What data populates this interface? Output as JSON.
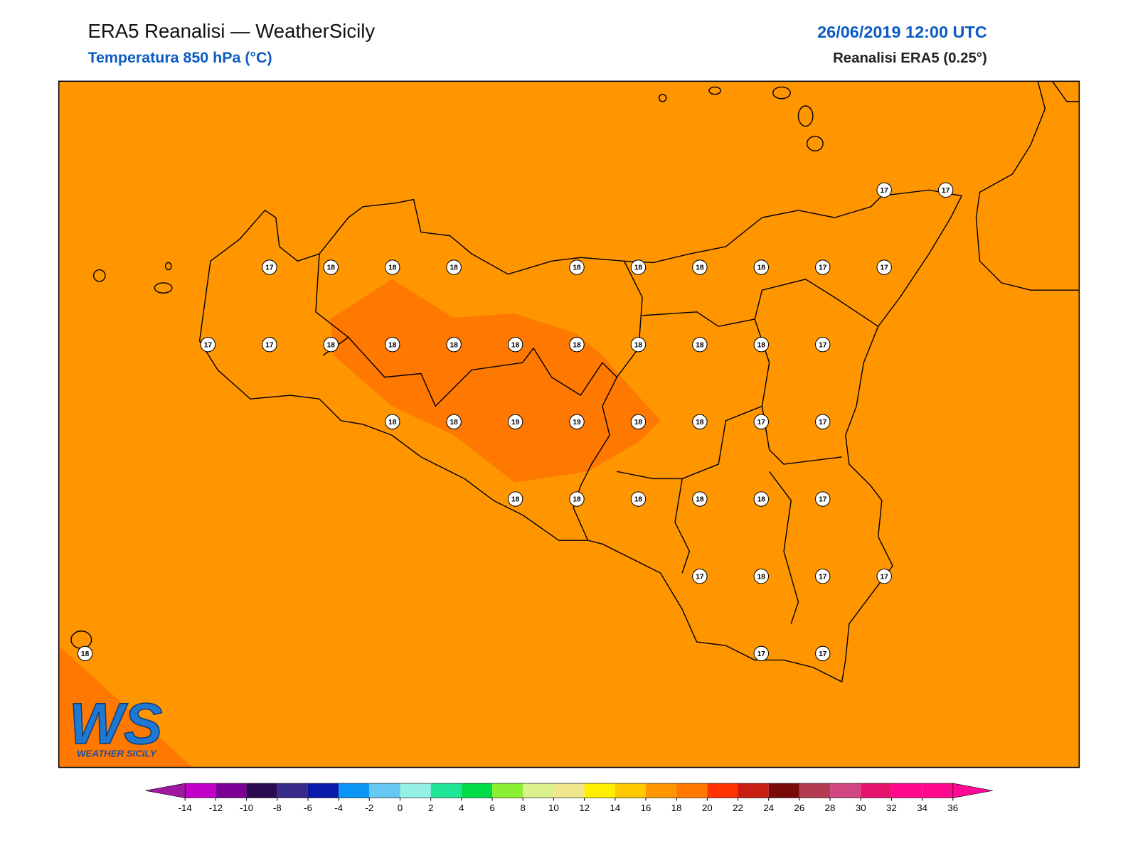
{
  "header": {
    "title": "ERA5 Reanalisi — WeatherSicily",
    "subtitle": "Temperatura 850 hPa (°C)",
    "datetime": "26/06/2019 12:00 UTC",
    "source": "Reanalisi ERA5 (0.25°)"
  },
  "map": {
    "stations": [
      17,
      17,
      17,
      18,
      18,
      18,
      18,
      18,
      18,
      18,
      17,
      17,
      17,
      17,
      18,
      18,
      18,
      18,
      18,
      18,
      18,
      18,
      17,
      18,
      18,
      19,
      19,
      18,
      18,
      17,
      17,
      18,
      18,
      18,
      18,
      18,
      17,
      17,
      18,
      17,
      17,
      18,
      17,
      17
    ]
  },
  "colorbar": {
    "ticks": [
      -14,
      -12,
      -10,
      -8,
      -6,
      -4,
      -2,
      0,
      2,
      4,
      6,
      8,
      10,
      12,
      14,
      16,
      18,
      20,
      22,
      24,
      26,
      28,
      30,
      32,
      34,
      36
    ],
    "colors": [
      "#c000c8",
      "#7a0096",
      "#2a0a50",
      "#3a2a8a",
      "#0a1aa8",
      "#0a96f5",
      "#64c8f0",
      "#96f0e6",
      "#1ee696",
      "#00dc46",
      "#8cf032",
      "#dcf08c",
      "#f0e68c",
      "#fff000",
      "#ffc800",
      "#ff9600",
      "#ff7800",
      "#ff3200",
      "#c81e14",
      "#780a0a",
      "#b43c50",
      "#d24682",
      "#e6146e",
      "#ff0a8c",
      "#ff0a8c"
    ],
    "under_color": "#a0189f",
    "over_color": "#ff0a96"
  },
  "logo": {
    "text": "WS",
    "subtext": "WEATHER SICILY"
  }
}
